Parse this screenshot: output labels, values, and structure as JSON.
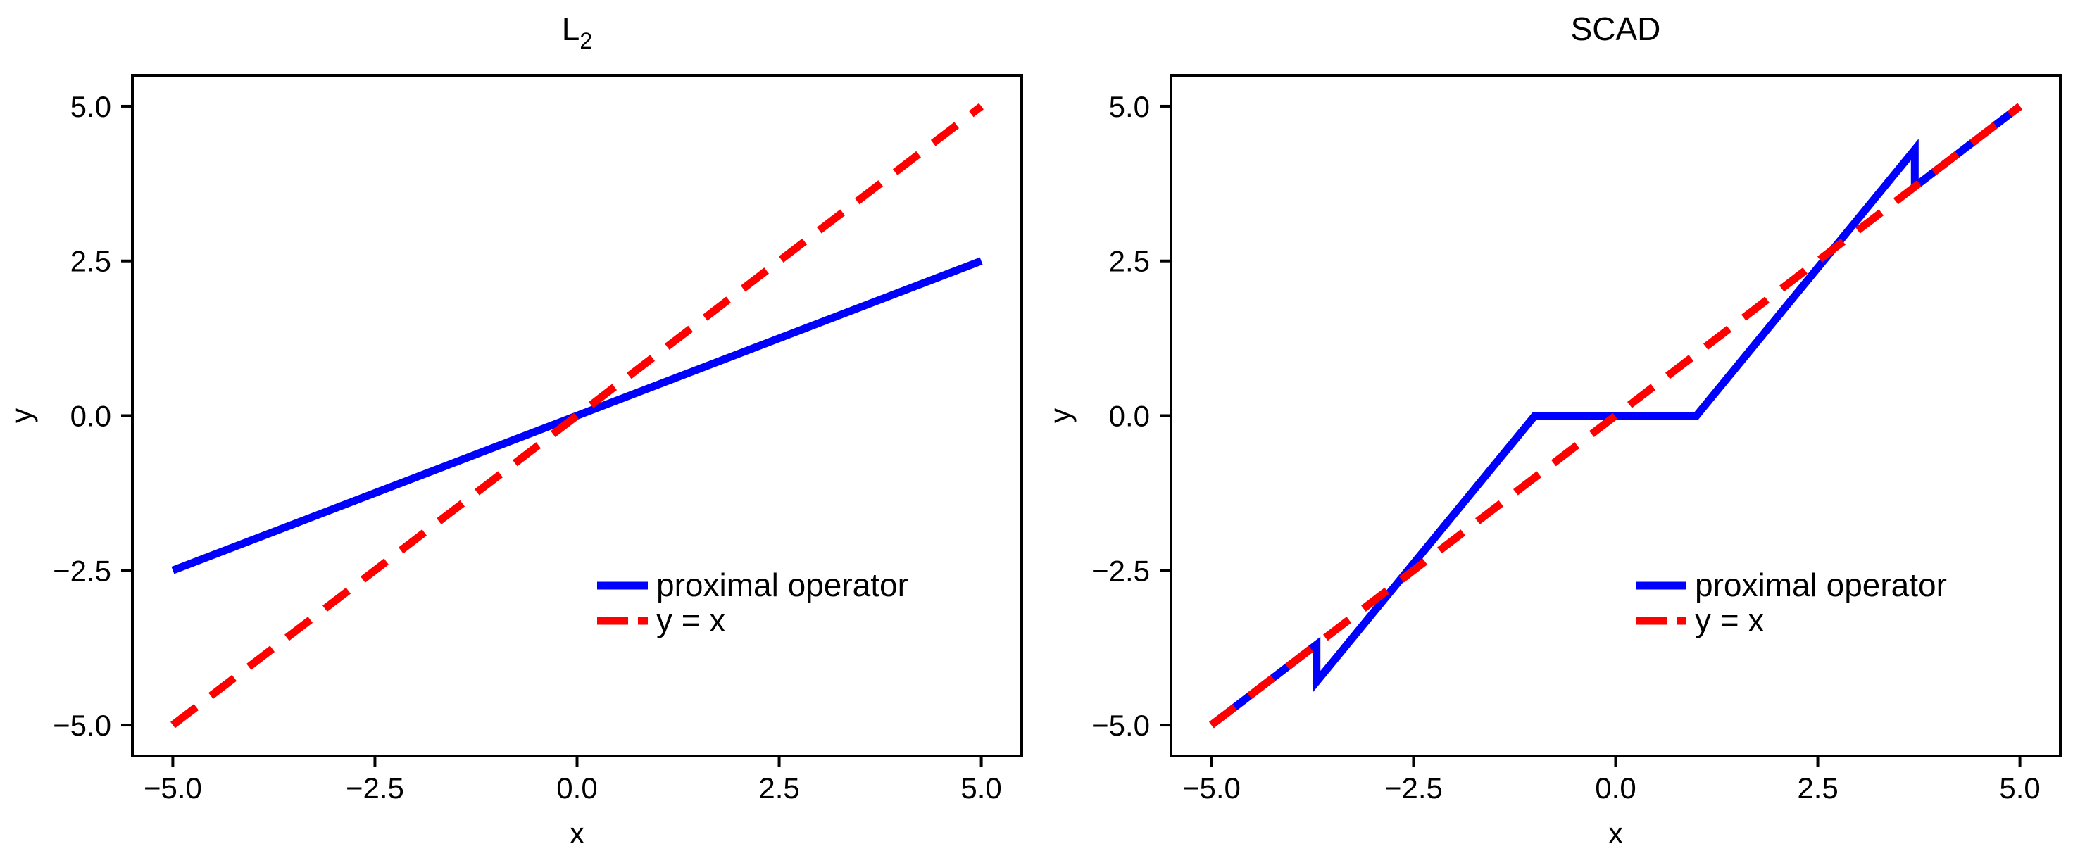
{
  "chart_data": [
    {
      "type": "line",
      "title": "L",
      "title_subscript": "2",
      "xlabel": "x",
      "ylabel": "y",
      "xlim": [
        -5.5,
        5.5
      ],
      "ylim": [
        -5.5,
        5.5
      ],
      "xticks": [
        -5.0,
        -2.5,
        0.0,
        2.5,
        5.0
      ],
      "yticks": [
        -5.0,
        -2.5,
        0.0,
        2.5,
        5.0
      ],
      "xtick_labels": [
        "−5.0",
        "−2.5",
        "0.0",
        "2.5",
        "5.0"
      ],
      "ytick_labels": [
        "−5.0",
        "−2.5",
        "0.0",
        "2.5",
        "5.0"
      ],
      "grid": false,
      "legend_position": "lower-right",
      "series": [
        {
          "name": "proximal operator",
          "color": "#0000ff",
          "dash": "solid",
          "points": [
            [
              -5.0,
              -2.5
            ],
            [
              5.0,
              2.5
            ]
          ]
        },
        {
          "name": "y = x",
          "color": "#ff0000",
          "dash": "dashed",
          "points": [
            [
              -5.0,
              -5.0
            ],
            [
              5.0,
              5.0
            ]
          ]
        }
      ]
    },
    {
      "type": "line",
      "title": "SCAD",
      "title_subscript": "",
      "xlabel": "x",
      "ylabel": "y",
      "xlim": [
        -5.5,
        5.5
      ],
      "ylim": [
        -5.5,
        5.5
      ],
      "xticks": [
        -5.0,
        -2.5,
        0.0,
        2.5,
        5.0
      ],
      "yticks": [
        -5.0,
        -2.5,
        0.0,
        2.5,
        5.0
      ],
      "xtick_labels": [
        "−5.0",
        "−2.5",
        "0.0",
        "2.5",
        "5.0"
      ],
      "ytick_labels": [
        "−5.0",
        "−2.5",
        "0.0",
        "2.5",
        "5.0"
      ],
      "grid": false,
      "legend_position": "lower-right",
      "series": [
        {
          "name": "proximal operator",
          "color": "#0000ff",
          "dash": "solid",
          "points": [
            [
              -5.0,
              -5.0
            ],
            [
              -3.7,
              -3.7
            ],
            [
              -3.7,
              -4.3
            ],
            [
              -1.0,
              0.0
            ],
            [
              1.0,
              0.0
            ],
            [
              3.7,
              4.3
            ],
            [
              3.7,
              3.7
            ],
            [
              5.0,
              5.0
            ]
          ]
        },
        {
          "name": "y = x",
          "color": "#ff0000",
          "dash": "dashed",
          "points": [
            [
              -5.0,
              -5.0
            ],
            [
              5.0,
              5.0
            ]
          ]
        }
      ]
    }
  ]
}
